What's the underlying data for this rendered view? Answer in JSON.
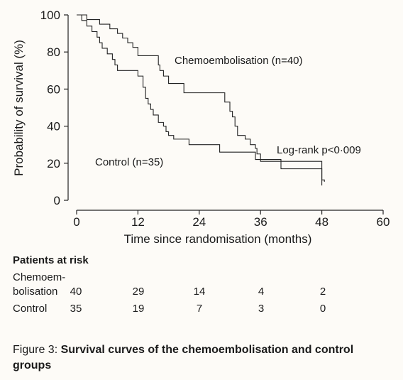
{
  "chart_data": {
    "type": "line",
    "step": true,
    "xlabel": "Time since randomisation (months)",
    "ylabel": "Probability of survival (%)",
    "xlim": [
      0,
      60
    ],
    "ylim": [
      0,
      100
    ],
    "xticks": [
      0,
      12,
      24,
      36,
      48,
      60
    ],
    "yticks": [
      0,
      20,
      40,
      60,
      80,
      100
    ],
    "grid": false,
    "series": [
      {
        "name": "Chemoembolisation (n=40)",
        "x": [
          0,
          2,
          4.5,
          6.5,
          8,
          9,
          10,
          11,
          12,
          15,
          16,
          16.3,
          17,
          18,
          21,
          29,
          30,
          30.5,
          31,
          31.5,
          33,
          34,
          35,
          35.3,
          36,
          48,
          48.5
        ],
        "y": [
          100,
          97.5,
          95,
          92.5,
          90,
          87.5,
          85,
          82.5,
          78,
          78,
          73,
          70,
          67,
          63,
          58,
          53,
          48,
          45,
          40,
          35,
          33,
          30,
          28,
          25,
          21,
          11,
          10
        ],
        "label_position": "upper-right"
      },
      {
        "name": "Control (n=35)",
        "x": [
          0,
          1,
          2,
          3,
          4,
          4.5,
          5,
          6,
          7,
          7.5,
          8,
          9,
          12,
          13,
          13.5,
          14,
          14.5,
          15,
          16,
          17,
          17.5,
          18,
          19,
          22,
          28,
          35,
          40,
          48
        ],
        "y": [
          100,
          97,
          94,
          91,
          88,
          85,
          82,
          79,
          76,
          73,
          70,
          70,
          67,
          61,
          55,
          52,
          49,
          46,
          42,
          40,
          37,
          35,
          33,
          30,
          26,
          22,
          17,
          8
        ],
        "label_position": "lower-left"
      }
    ],
    "annotation": "Log-rank p<0·009"
  },
  "risk_table": {
    "title": "Patients at risk",
    "rows": [
      {
        "label_lines": [
          "Chemoem-",
          "bolisation"
        ],
        "values": [
          "40",
          "29",
          "14",
          "4",
          "2"
        ]
      },
      {
        "label_lines": [
          "Control"
        ],
        "values": [
          "35",
          "19",
          "7",
          "3",
          "0"
        ]
      }
    ]
  },
  "caption": {
    "prefix": "Figure 3: ",
    "title": "Survival curves of the chemoembolisation and control groups"
  }
}
